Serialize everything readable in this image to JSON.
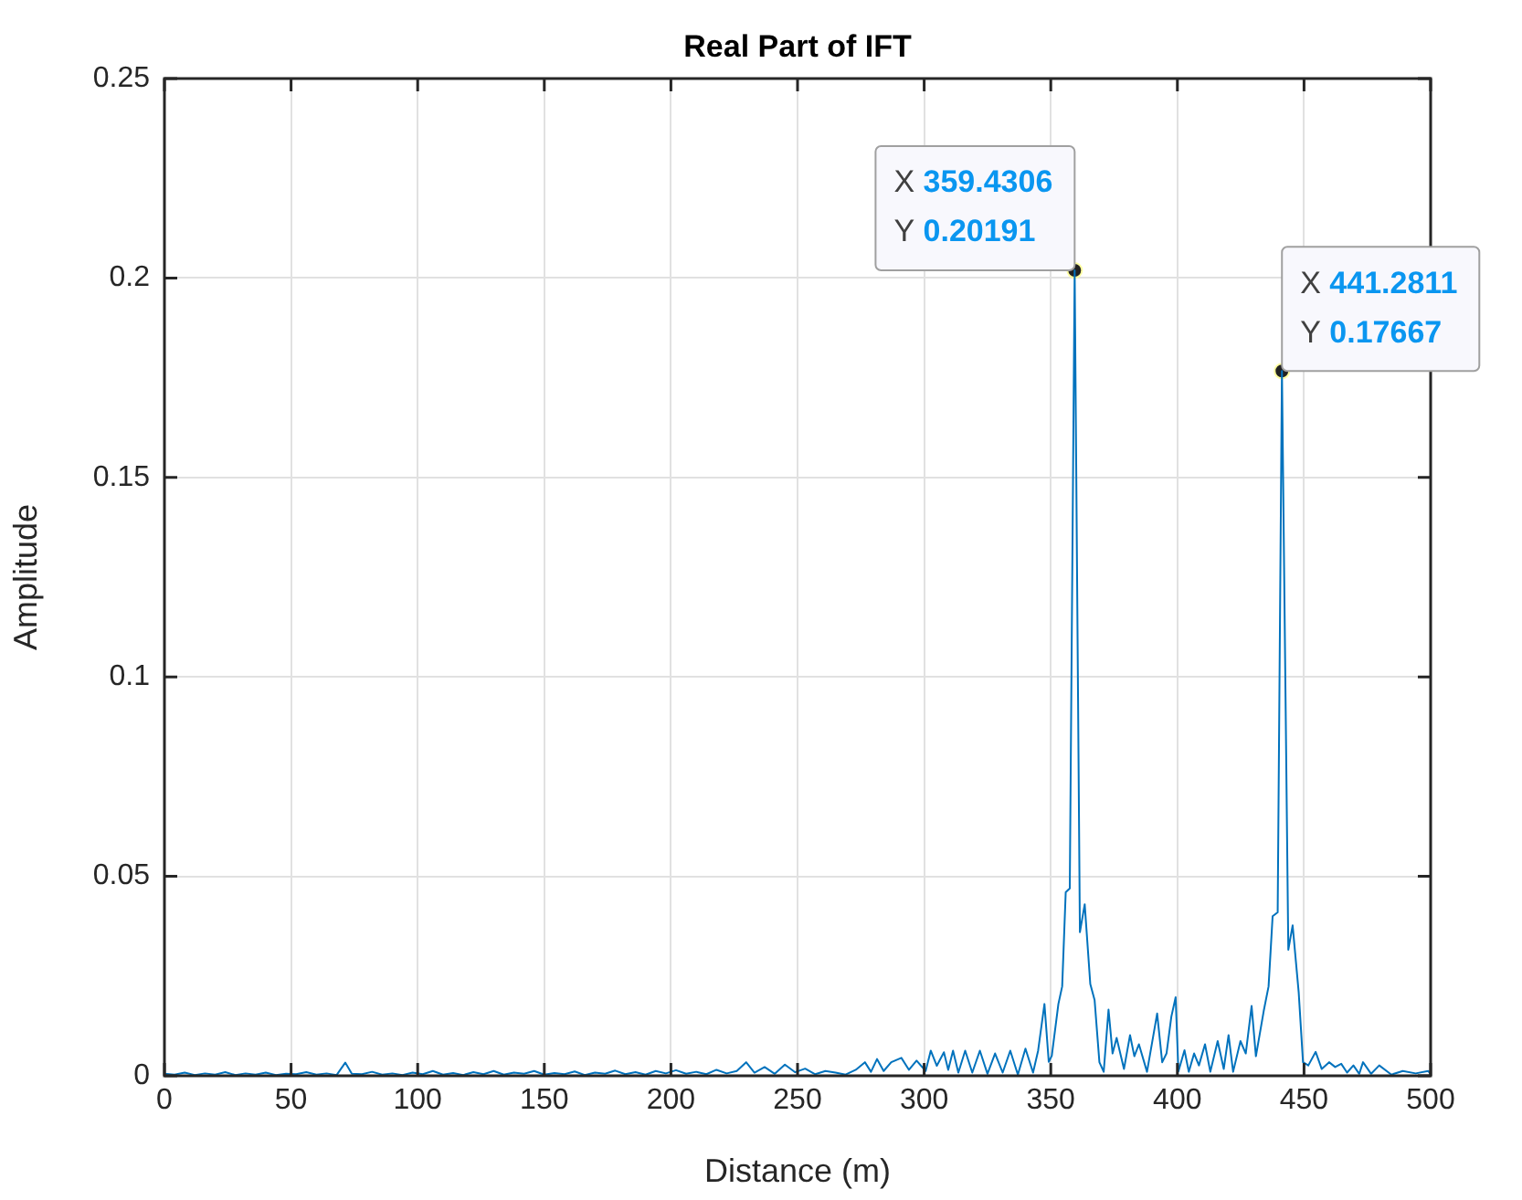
{
  "chart_data": {
    "type": "line",
    "title": "Real Part of IFT",
    "xlabel": "Distance (m)",
    "ylabel": "Amplitude",
    "xlim": [
      0,
      500
    ],
    "ylim": [
      0,
      0.25
    ],
    "xticks": [
      0,
      50,
      100,
      150,
      200,
      250,
      300,
      350,
      400,
      450,
      500
    ],
    "yticks": [
      0,
      0.05,
      0.1,
      0.15,
      0.2,
      0.25
    ],
    "grid": true,
    "marker": "none",
    "line_style": "solid",
    "annotations": [
      {
        "text": "X 359.4306\nY 0.20191",
        "x": 359.4306,
        "y": 0.20191
      },
      {
        "text": "X 441.2811\nY 0.17667",
        "x": 441.2811,
        "y": 0.17667
      }
    ],
    "series": [
      {
        "color": "#0072bd",
        "x": [
          0,
          4,
          8,
          12,
          16,
          20,
          24,
          28,
          32,
          36,
          40,
          44,
          48,
          52,
          56,
          60,
          64,
          68,
          71.4,
          74,
          78,
          82,
          86,
          90,
          94,
          98,
          102,
          106,
          110,
          114,
          118,
          122,
          126,
          130,
          134,
          138,
          142,
          146,
          150,
          154,
          158,
          162,
          166,
          170,
          174,
          178,
          182,
          186,
          190,
          194,
          198,
          202,
          206,
          210,
          214,
          218,
          222,
          226,
          229.7,
          233,
          237,
          241,
          245,
          249,
          253,
          257,
          261,
          265,
          269,
          273,
          276.6,
          279,
          281.4,
          284,
          287,
          291,
          294,
          297,
          300.6,
          302.6,
          305,
          307.8,
          309.5,
          311.4,
          313.5,
          316.2,
          319,
          322,
          325,
          328,
          331,
          334,
          337,
          340,
          343,
          345,
          347.5,
          349.2,
          350.4,
          353,
          354.5,
          355.9,
          357.5,
          359.4306,
          361.5,
          363.4,
          365.6,
          367.3,
          369.2,
          370.9,
          372.8,
          374.4,
          376,
          378.9,
          381.3,
          383,
          384.8,
          388,
          392,
          394,
          395.7,
          397.6,
          399.3,
          400.4,
          402.8,
          404.5,
          406.6,
          408.5,
          410.9,
          413,
          415.9,
          418.3,
          420.2,
          422,
          424.9,
          427,
          429.3,
          431,
          434.1,
          436,
          437.6,
          439.6,
          441.2811,
          443.8,
          445.5,
          447.9,
          449.6,
          451.7,
          454.6,
          457,
          459.9,
          462.3,
          464.7,
          467,
          469.5,
          471.8,
          473.3,
          476.5,
          479.7,
          484.5,
          489,
          494.1,
          499,
          500
        ],
        "values": [
          0.0005,
          0.0003,
          0.0008,
          0.0002,
          0.0006,
          0.0003,
          0.0009,
          0.0002,
          0.0006,
          0.0003,
          0.0008,
          0.0002,
          0.0005,
          0.0004,
          0.0009,
          0.0003,
          0.0006,
          0.0002,
          0.0033,
          0.0005,
          0.0004,
          0.001,
          0.0003,
          0.0006,
          0.0002,
          0.0008,
          0.0004,
          0.0012,
          0.0003,
          0.0007,
          0.0002,
          0.0009,
          0.0004,
          0.0012,
          0.0003,
          0.0008,
          0.0005,
          0.0012,
          0.0003,
          0.0007,
          0.0004,
          0.0011,
          0.0002,
          0.0008,
          0.0005,
          0.0013,
          0.0004,
          0.0009,
          0.0003,
          0.0012,
          0.0006,
          0.0014,
          0.0005,
          0.001,
          0.0004,
          0.0015,
          0.0006,
          0.0012,
          0.0034,
          0.0008,
          0.0022,
          0.0005,
          0.0028,
          0.0009,
          0.0018,
          0.0004,
          0.0012,
          0.0008,
          0.0003,
          0.0015,
          0.0034,
          0.001,
          0.0042,
          0.0012,
          0.0034,
          0.0045,
          0.0015,
          0.0038,
          0.0012,
          0.0063,
          0.0025,
          0.0059,
          0.0015,
          0.0063,
          0.0008,
          0.0063,
          0.0008,
          0.0063,
          0.0005,
          0.0056,
          0.0008,
          0.0063,
          0.0003,
          0.0068,
          0.0008,
          0.0063,
          0.018,
          0.0035,
          0.005,
          0.018,
          0.0224,
          0.046,
          0.047,
          0.20191,
          0.036,
          0.043,
          0.023,
          0.019,
          0.0034,
          0.001,
          0.0166,
          0.0056,
          0.0095,
          0.0017,
          0.0102,
          0.0049,
          0.0079,
          0.001,
          0.0156,
          0.0034,
          0.0056,
          0.0148,
          0.0197,
          0.0011,
          0.0064,
          0.001,
          0.0056,
          0.0026,
          0.0079,
          0.001,
          0.0087,
          0.0017,
          0.0102,
          0.001,
          0.0087,
          0.0056,
          0.0175,
          0.0049,
          0.0163,
          0.0224,
          0.04,
          0.041,
          0.17667,
          0.0316,
          0.0377,
          0.0209,
          0.0034,
          0.0026,
          0.006,
          0.0017,
          0.0034,
          0.0022,
          0.003,
          0.0008,
          0.0026,
          0.0005,
          0.0034,
          0.0005,
          0.0026,
          0.0003,
          0.0012,
          0.0006,
          0.0012,
          0.0005
        ]
      }
    ]
  }
}
